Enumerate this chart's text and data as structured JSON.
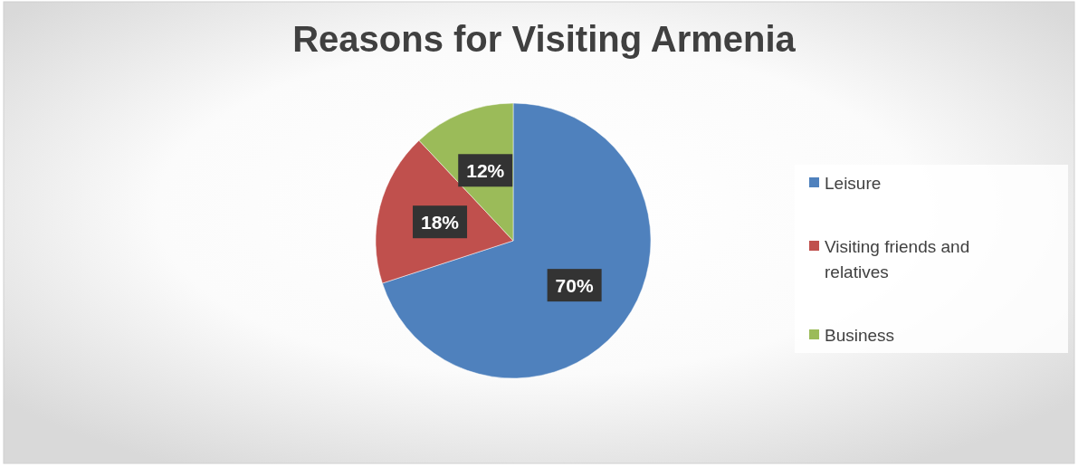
{
  "chart_data": {
    "type": "pie",
    "title": "Reasons for Visiting Armenia",
    "categories": [
      "Leisure",
      "Visiting friends and relatives",
      "Business"
    ],
    "values": [
      70,
      18,
      12
    ],
    "colors": [
      "#4f81bd",
      "#c0504d",
      "#9bbb59"
    ],
    "value_labels": [
      "70%",
      "18%",
      "12%"
    ],
    "legend": "right"
  }
}
